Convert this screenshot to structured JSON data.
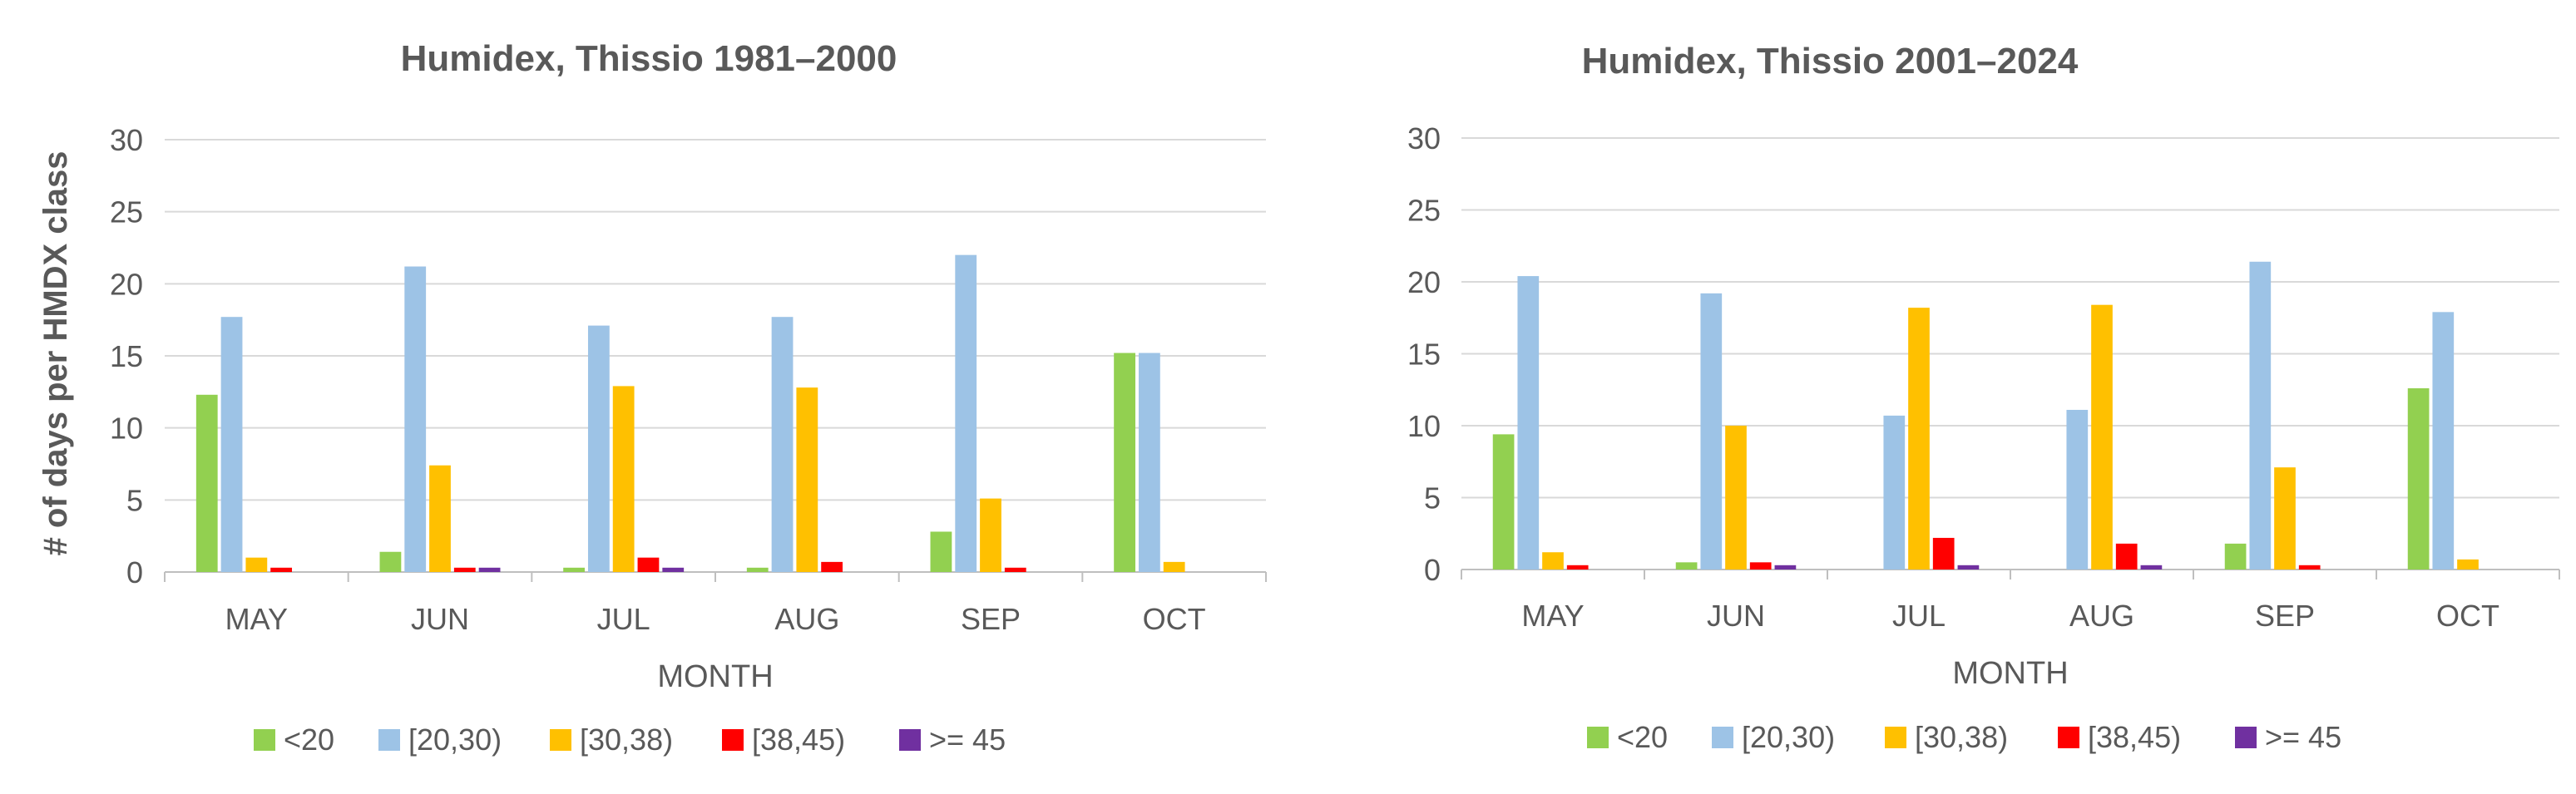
{
  "colors": {
    "lt20": "#92d050",
    "20_30": "#9dc3e6",
    "30_38": "#ffc000",
    "38_45": "#ff0000",
    "ge45": "#7030a0",
    "grid": "#d9d9d9",
    "axis_text": "#595959",
    "title_text": "#595959"
  },
  "chart_data": [
    {
      "type": "bar",
      "title": "Humidex, Thissio 1981–2000",
      "xlabel": "MONTH",
      "ylabel": "# of days per HMDX class",
      "categories": [
        "MAY",
        "JUN",
        "JUL",
        "AUG",
        "SEP",
        "OCT"
      ],
      "yticks": [
        "0",
        "5",
        "10",
        "15",
        "20",
        "25",
        "30"
      ],
      "ylim": [
        0,
        30
      ],
      "grid": true,
      "legend_position": "bottom",
      "series": [
        {
          "name": "<20",
          "color_key": "lt20",
          "values": [
            12.3,
            1.4,
            0.3,
            0.3,
            2.8,
            15.2
          ]
        },
        {
          "name": "[20,30)",
          "color_key": "20_30",
          "values": [
            17.7,
            21.2,
            17.1,
            17.7,
            22.0,
            15.2
          ]
        },
        {
          "name": "[30,38)",
          "color_key": "30_38",
          "values": [
            1.0,
            7.4,
            12.9,
            12.8,
            5.1,
            0.7
          ]
        },
        {
          "name": "[38,45)",
          "color_key": "38_45",
          "values": [
            0.3,
            0.3,
            1.0,
            0.7,
            0.3,
            0
          ]
        },
        {
          "name": ">= 45",
          "color_key": "ge45",
          "values": [
            0,
            0.3,
            0.3,
            0,
            0,
            0
          ]
        }
      ]
    },
    {
      "type": "bar",
      "title": "Humidex, Thissio 2001–2024",
      "xlabel": "MONTH",
      "ylabel": "",
      "categories": [
        "MAY",
        "JUN",
        "JUL",
        "AUG",
        "SEP",
        "OCT"
      ],
      "yticks": [
        "0",
        "5",
        "10",
        "15",
        "20",
        "25",
        "30"
      ],
      "ylim": [
        0,
        30
      ],
      "grid": true,
      "legend_position": "bottom",
      "series": [
        {
          "name": "<20",
          "color_key": "lt20",
          "values": [
            9.4,
            0.5,
            0,
            0,
            1.8,
            12.6
          ]
        },
        {
          "name": "[20,30)",
          "color_key": "20_30",
          "values": [
            20.4,
            19.2,
            10.7,
            11.1,
            21.4,
            17.9
          ]
        },
        {
          "name": "[30,38)",
          "color_key": "30_38",
          "values": [
            1.2,
            10.0,
            18.2,
            18.4,
            7.1,
            0.7
          ]
        },
        {
          "name": "[38,45)",
          "color_key": "38_45",
          "values": [
            0.3,
            0.5,
            2.2,
            1.8,
            0.3,
            0
          ]
        },
        {
          "name": ">= 45",
          "color_key": "ge45",
          "values": [
            0,
            0.3,
            0.3,
            0.3,
            0,
            0
          ]
        }
      ]
    }
  ]
}
